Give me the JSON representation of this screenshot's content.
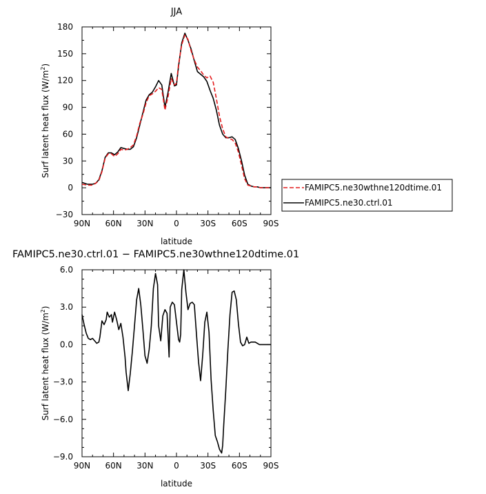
{
  "chart_data": [
    {
      "type": "line",
      "title": "JJA",
      "xlabel": "latitude",
      "ylabel": "Surf latent heat flux (W/m",
      "ylabel_sup": "2",
      "ylabel_close": ")",
      "xlim": [
        90,
        -90
      ],
      "ylim": [
        -30,
        180
      ],
      "xticks": [
        {
          "v": 90,
          "label": "90N"
        },
        {
          "v": 60,
          "label": "60N"
        },
        {
          "v": 30,
          "label": "30N"
        },
        {
          "v": 0,
          "label": "0"
        },
        {
          "v": -30,
          "label": "30S"
        },
        {
          "v": -60,
          "label": "60S"
        },
        {
          "v": -90,
          "label": "90S"
        }
      ],
      "yticks": [
        {
          "v": -30,
          "label": "−30"
        },
        {
          "v": 0,
          "label": "0"
        },
        {
          "v": 30,
          "label": "30"
        },
        {
          "v": 60,
          "label": "60"
        },
        {
          "v": 90,
          "label": "90"
        },
        {
          "v": 120,
          "label": "120"
        },
        {
          "v": 150,
          "label": "150"
        },
        {
          "v": 180,
          "label": "180"
        }
      ],
      "legend_placement": "right",
      "series": [
        {
          "name": "FAMIPC5.ne30wthne120dtime.01",
          "color": "#e41a1c",
          "dash": "dashed",
          "x": [
            90,
            85,
            80,
            77,
            74,
            71,
            68,
            65,
            62,
            59,
            56,
            53,
            50,
            47,
            44,
            41,
            38,
            35,
            32,
            29,
            26,
            23,
            20,
            17,
            14,
            11,
            8,
            5,
            2,
            0,
            -2,
            -5,
            -8,
            -11,
            -14,
            -17,
            -20,
            -23,
            -26,
            -29,
            -32,
            -35,
            -38,
            -41,
            -44,
            -47,
            -50,
            -53,
            -56,
            -59,
            -62,
            -65,
            -68,
            -71,
            -74,
            -77,
            -80,
            -85,
            -90
          ],
          "y": [
            4,
            3,
            3,
            5,
            8,
            18,
            33,
            38,
            38,
            35,
            38,
            43,
            42,
            43,
            45,
            48,
            58,
            72,
            82,
            95,
            103,
            105,
            108,
            112,
            110,
            87,
            102,
            122,
            115,
            117,
            138,
            160,
            171,
            166,
            153,
            143,
            135,
            131,
            126,
            123,
            125,
            118,
            100,
            80,
            66,
            57,
            55,
            54,
            50,
            40,
            25,
            10,
            3,
            2,
            1,
            1,
            0,
            0,
            0
          ]
        },
        {
          "name": "FAMIPC5.ne30.ctrl.01",
          "color": "#000000",
          "dash": "solid",
          "x": [
            90,
            85,
            80,
            77,
            74,
            71,
            68,
            65,
            62,
            59,
            56,
            53,
            50,
            47,
            44,
            41,
            38,
            35,
            32,
            29,
            26,
            23,
            20,
            17,
            14,
            11,
            8,
            5,
            2,
            0,
            -2,
            -5,
            -8,
            -11,
            -14,
            -17,
            -20,
            -23,
            -26,
            -29,
            -32,
            -35,
            -38,
            -41,
            -44,
            -47,
            -50,
            -53,
            -56,
            -59,
            -62,
            -65,
            -68,
            -71,
            -74,
            -77,
            -80,
            -85,
            -90
          ],
          "y": [
            6,
            4,
            4,
            5,
            9,
            19,
            34,
            39,
            39,
            37,
            40,
            45,
            44,
            43,
            43,
            46,
            56,
            70,
            84,
            98,
            104,
            107,
            113,
            120,
            115,
            90,
            107,
            128,
            114,
            115,
            136,
            162,
            173,
            165,
            155,
            142,
            130,
            127,
            124,
            119,
            109,
            100,
            87,
            70,
            60,
            56,
            56,
            57,
            54,
            44,
            30,
            14,
            4,
            2,
            1,
            1,
            0,
            0,
            0
          ]
        }
      ]
    },
    {
      "type": "line",
      "title": "FAMIPC5.ne30.ctrl.01 − FAMIPC5.ne30wthne120dtime.01",
      "xlabel": "latitude",
      "ylabel": "Surf latent heat flux (W/m",
      "ylabel_sup": "2",
      "ylabel_close": ")",
      "xlim": [
        90,
        -90
      ],
      "ylim": [
        -9,
        6
      ],
      "xticks": [
        {
          "v": 90,
          "label": "90N"
        },
        {
          "v": 60,
          "label": "60N"
        },
        {
          "v": 30,
          "label": "30N"
        },
        {
          "v": 0,
          "label": "0"
        },
        {
          "v": -30,
          "label": "30S"
        },
        {
          "v": -60,
          "label": "60S"
        },
        {
          "v": -90,
          "label": "90S"
        }
      ],
      "yticks": [
        {
          "v": -9,
          "label": "−9.0"
        },
        {
          "v": -6,
          "label": "−6.0"
        },
        {
          "v": -3,
          "label": "−3.0"
        },
        {
          "v": 0,
          "label": "0.0"
        },
        {
          "v": 3,
          "label": "3.0"
        },
        {
          "v": 6,
          "label": "6.0"
        }
      ],
      "series": [
        {
          "name": "",
          "color": "#000000",
          "dash": "solid",
          "x": [
            90,
            88,
            86,
            84,
            82,
            80,
            78,
            76,
            74,
            73,
            71,
            69,
            67,
            66,
            64,
            62,
            61,
            59,
            57,
            55,
            53,
            51,
            49,
            48,
            46,
            44,
            42,
            40,
            38,
            36,
            34,
            32,
            30,
            28,
            26,
            24,
            22,
            20,
            18,
            17,
            15,
            13,
            11,
            9,
            7,
            6,
            4,
            2,
            0,
            -2,
            -3,
            -4,
            -5,
            -7,
            -9,
            -11,
            -13,
            -15,
            -17,
            -19,
            -21,
            -23,
            -25,
            -27,
            -29,
            -31,
            -33,
            -35,
            -37,
            -39,
            -41,
            -43,
            -44,
            -45,
            -47,
            -49,
            -51,
            -53,
            -55,
            -57,
            -59,
            -61,
            -63,
            -65,
            -67,
            -69,
            -71,
            -73,
            -75,
            -77,
            -79,
            -81,
            -83,
            -85,
            -88,
            -90
          ],
          "y": [
            2.4,
            1.6,
            0.9,
            0.5,
            0.4,
            0.5,
            0.3,
            0.1,
            0.2,
            0.6,
            1.9,
            1.6,
            2.0,
            2.6,
            2.2,
            2.4,
            1.8,
            2.6,
            2.0,
            1.2,
            1.7,
            0.6,
            -1.0,
            -2.2,
            -3.7,
            -2.3,
            -0.5,
            1.5,
            3.6,
            4.5,
            3.2,
            1.2,
            -0.9,
            -1.5,
            -0.4,
            1.5,
            4.5,
            5.7,
            4.8,
            1.5,
            0.3,
            2.3,
            2.8,
            2.5,
            -1.0,
            3.0,
            3.4,
            3.2,
            1.8,
            0.4,
            0.2,
            0.8,
            4.4,
            6.0,
            4.2,
            2.8,
            3.3,
            3.4,
            3.2,
            0.9,
            -1.4,
            -2.9,
            -0.8,
            1.8,
            2.6,
            1.0,
            -2.8,
            -5.3,
            -7.3,
            -7.8,
            -8.4,
            -8.7,
            -8.1,
            -6.5,
            -3.7,
            -0.4,
            2.4,
            4.2,
            4.3,
            3.6,
            1.7,
            0.2,
            -0.1,
            0.0,
            0.6,
            0.1,
            0.2,
            0.2,
            0.2,
            0.1,
            0.0,
            0.0,
            0.0,
            0.0,
            0.0,
            0.0
          ]
        }
      ]
    }
  ]
}
